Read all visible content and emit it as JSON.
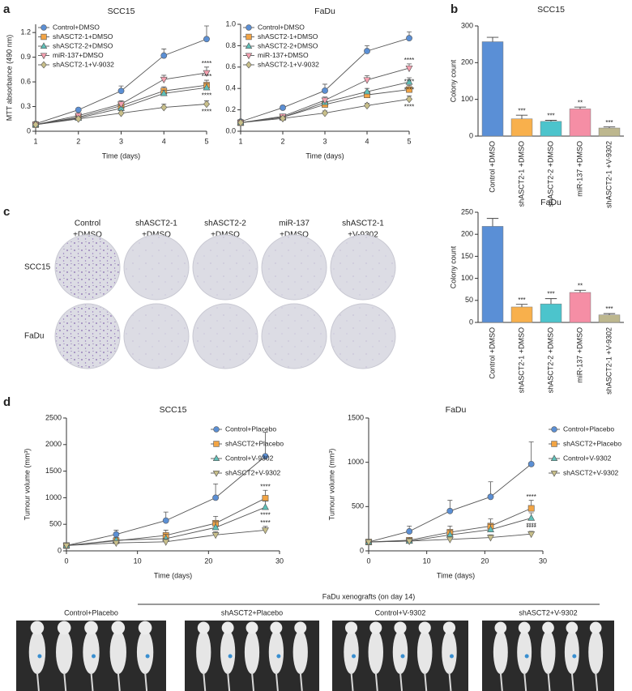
{
  "panels": [
    "a",
    "b",
    "c",
    "d"
  ],
  "chart_data": [
    {
      "type": "line",
      "title": "SCC15",
      "xlabel": "Time (days)",
      "ylabel": "MTT absorbance (490 nm)",
      "x": [
        1,
        2,
        3,
        4,
        5
      ],
      "xlim": [
        1,
        5
      ],
      "xticks": [
        1,
        2,
        3,
        4,
        5
      ],
      "ylim": [
        0,
        1.3
      ],
      "yticks": [
        0,
        0.3,
        0.6,
        0.9,
        1.2
      ],
      "legend": "upper left",
      "series": [
        {
          "name": "Control+DMSO",
          "color": "#5b8fd4",
          "marker": "circle",
          "values": [
            0.09,
            0.26,
            0.49,
            0.92,
            1.12
          ],
          "errors": [
            0.01,
            0.02,
            0.06,
            0.08,
            0.16
          ]
        },
        {
          "name": "shASCT2-1+DMSO",
          "color": "#f2a444",
          "marker": "square",
          "values": [
            0.08,
            0.17,
            0.31,
            0.49,
            0.56
          ],
          "errors": [
            0.01,
            0.02,
            0.04,
            0.05,
            0.06
          ]
        },
        {
          "name": "shASCT2-2+DMSO",
          "color": "#5fc0b8",
          "marker": "triangle",
          "values": [
            0.08,
            0.16,
            0.28,
            0.46,
            0.53
          ],
          "errors": [
            0.01,
            0.02,
            0.03,
            0.04,
            0.05
          ]
        },
        {
          "name": "miR-137+DMSO",
          "color": "#f5a0b0",
          "marker": "triangle-down",
          "values": [
            0.08,
            0.19,
            0.33,
            0.63,
            0.71
          ],
          "errors": [
            0.01,
            0.02,
            0.04,
            0.05,
            0.07
          ]
        },
        {
          "name": "shASCT2-1+V-9032",
          "color": "#c8bf8a",
          "marker": "diamond",
          "values": [
            0.08,
            0.15,
            0.22,
            0.29,
            0.33
          ],
          "errors": [
            0.01,
            0.02,
            0.03,
            0.04,
            0.04
          ]
        }
      ],
      "annotations": [
        "****",
        "****",
        "****",
        "****"
      ]
    },
    {
      "type": "line",
      "title": "FaDu",
      "xlabel": "Time (days)",
      "x": [
        1,
        2,
        3,
        4,
        5
      ],
      "xlim": [
        1,
        5
      ],
      "xticks": [
        1,
        2,
        3,
        4,
        5
      ],
      "ylim": [
        0,
        1
      ],
      "yticks": [
        {
          "value": 0,
          "label": "0.0"
        },
        0.2,
        0.4,
        0.6,
        0.8,
        {
          "value": 1,
          "label": "1.0"
        }
      ],
      "legend": "upper left",
      "series": [
        {
          "name": "Control+DMSO",
          "color": "#5b8fd4",
          "marker": "circle",
          "values": [
            0.09,
            0.22,
            0.38,
            0.75,
            0.87
          ],
          "errors": [
            0.01,
            0.02,
            0.06,
            0.05,
            0.06
          ]
        },
        {
          "name": "shASCT2-1+DMSO",
          "color": "#f2a444",
          "marker": "square",
          "values": [
            0.08,
            0.13,
            0.25,
            0.34,
            0.39
          ],
          "errors": [
            0.01,
            0.02,
            0.03,
            0.03,
            0.04
          ]
        },
        {
          "name": "shASCT2-2+DMSO",
          "color": "#5fc0b8",
          "marker": "triangle",
          "values": [
            0.08,
            0.13,
            0.27,
            0.37,
            0.46
          ],
          "errors": [
            0.01,
            0.02,
            0.03,
            0.03,
            0.04
          ]
        },
        {
          "name": "miR-137+DMSO",
          "color": "#f5a0b0",
          "marker": "triangle-down",
          "values": [
            0.08,
            0.14,
            0.29,
            0.48,
            0.59
          ],
          "errors": [
            0.01,
            0.02,
            0.03,
            0.04,
            0.04
          ]
        },
        {
          "name": "shASCT2-1+V-9032",
          "color": "#c8bf8a",
          "marker": "diamond",
          "values": [
            0.08,
            0.12,
            0.17,
            0.24,
            0.3
          ],
          "errors": [
            0.01,
            0.01,
            0.02,
            0.02,
            0.03
          ]
        }
      ],
      "annotations": [
        "****",
        "****",
        "****",
        "****"
      ]
    },
    {
      "type": "bar",
      "title": "SCC15",
      "ylabel": "Colony count",
      "categories": [
        "Control +DMSO",
        "shASCT2-1 +DMSO",
        "shASCT2-2 +DMSO",
        "miR-137 +DMSO",
        "shASCT2-1 +V-9302"
      ],
      "values": [
        257,
        47,
        40,
        74,
        22
      ],
      "errors": [
        12,
        10,
        3,
        5,
        3
      ],
      "colors": [
        "#5a8fd6",
        "#f8b04c",
        "#4cc4cc",
        "#f58ea5",
        "#bdb78e"
      ],
      "significance": [
        null,
        "***",
        "***",
        "**",
        "***"
      ],
      "ylim": [
        0,
        300
      ],
      "yticks": [
        0,
        100,
        200,
        300
      ]
    },
    {
      "type": "bar",
      "title": "FaDu",
      "ylabel": "Colony count",
      "categories": [
        "Control +DMSO",
        "shASCT2-1 +DMSO",
        "shASCT2-2 +DMSO",
        "miR-137 +DMSO",
        "shASCT2-1 +V-9302"
      ],
      "values": [
        218,
        35,
        42,
        68,
        17
      ],
      "errors": [
        18,
        6,
        12,
        5,
        3
      ],
      "colors": [
        "#5a8fd6",
        "#f8b04c",
        "#4cc4cc",
        "#f58ea5",
        "#bdb78e"
      ],
      "significance": [
        null,
        "***",
        "***",
        "**",
        "***"
      ],
      "ylim": [
        0,
        250
      ],
      "yticks": [
        0,
        50,
        100,
        150,
        200,
        250
      ]
    },
    {
      "type": "line",
      "title": "SCC15",
      "xlabel": "Time (days)",
      "ylabel": "Tumour volume (mm³)",
      "x": [
        0,
        7,
        14,
        21,
        28
      ],
      "xlim": [
        0,
        30
      ],
      "xticks": [
        0,
        10,
        20,
        30
      ],
      "ylim": [
        0,
        2500
      ],
      "yticks": [
        0,
        500,
        1000,
        1500,
        2000,
        2500
      ],
      "legend": "upper right",
      "series": [
        {
          "name": "Control+Placebo",
          "color": "#5b8fd4",
          "marker": "circle",
          "values": [
            100,
            310,
            570,
            1000,
            1780
          ],
          "errors": [
            0,
            80,
            160,
            260,
            450
          ]
        },
        {
          "name": "shASCT2+Placebo",
          "color": "#f2a444",
          "marker": "square",
          "values": [
            100,
            190,
            290,
            520,
            990
          ],
          "errors": [
            0,
            60,
            100,
            130,
            150
          ]
        },
        {
          "name": "Control+V-9302",
          "color": "#5fc0b8",
          "marker": "triangle",
          "values": [
            100,
            200,
            230,
            440,
            820
          ],
          "errors": [
            0,
            50,
            80,
            110,
            120
          ]
        },
        {
          "name": "shASCT2+V-9302",
          "color": "#c8bf8a",
          "marker": "triangle-down",
          "values": [
            100,
            150,
            170,
            300,
            390
          ],
          "errors": [
            0,
            40,
            50,
            60,
            70
          ]
        }
      ],
      "annotations": [
        "****",
        "****",
        "****"
      ]
    },
    {
      "type": "line",
      "title": "FaDu",
      "xlabel": "Time (days)",
      "ylabel": "Tumour volume (mm³)",
      "x": [
        0,
        7,
        14,
        21,
        28
      ],
      "xlim": [
        0,
        30
      ],
      "xticks": [
        0,
        10,
        20,
        30
      ],
      "ylim": [
        0,
        1500
      ],
      "yticks": [
        0,
        500,
        1000,
        1500
      ],
      "legend": "outside right",
      "series": [
        {
          "name": "Control+Placebo",
          "color": "#5b8fd4",
          "marker": "circle",
          "values": [
            100,
            220,
            450,
            610,
            980
          ],
          "errors": [
            0,
            60,
            120,
            170,
            250
          ]
        },
        {
          "name": "shASCT2+Placebo",
          "color": "#f2a444",
          "marker": "square",
          "values": [
            100,
            120,
            210,
            280,
            480
          ],
          "errors": [
            0,
            30,
            70,
            80,
            90
          ]
        },
        {
          "name": "Control+V-9302",
          "color": "#5fc0b8",
          "marker": "triangle",
          "values": [
            100,
            110,
            180,
            240,
            370
          ],
          "errors": [
            0,
            30,
            50,
            60,
            60
          ]
        },
        {
          "name": "shASCT2+V-9302",
          "color": "#c8bf8a",
          "marker": "triangle-down",
          "values": [
            100,
            110,
            130,
            150,
            190
          ],
          "errors": [
            0,
            20,
            30,
            30,
            30
          ]
        }
      ],
      "annotations": [
        "****",
        "****",
        "****"
      ]
    }
  ],
  "plates": {
    "columns": [
      [
        "Control",
        "+DMSO"
      ],
      [
        "shASCT2-1",
        "+DMSO"
      ],
      [
        "shASCT2-2",
        "+DMSO"
      ],
      [
        "miR-137",
        "+DMSO"
      ],
      [
        "shASCT2-1",
        "+V-9302"
      ]
    ],
    "rows": [
      "SCC15",
      "FaDu"
    ]
  },
  "xenografts": {
    "title": "FaDu xenografts (on day 14)",
    "groups": [
      "Control+Placebo",
      "shASCT2+Placebo",
      "Control+V-9302",
      "shASCT2+V-9302"
    ]
  }
}
